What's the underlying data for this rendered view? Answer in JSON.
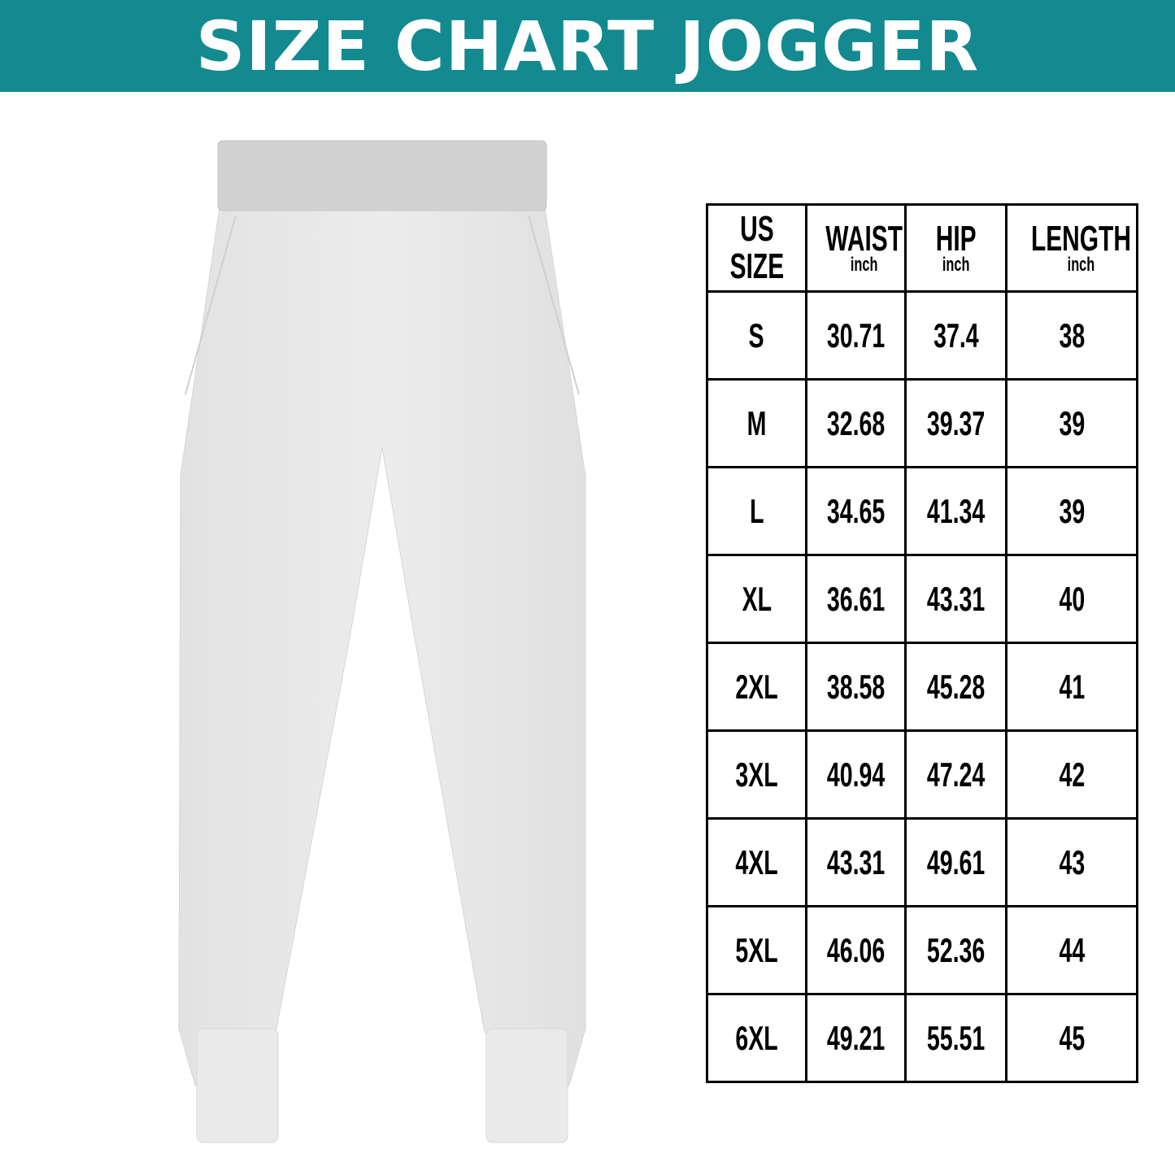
{
  "title": "SIZE CHART JOGGER",
  "colors": {
    "banner": "#138a8f",
    "garment": "#e6e6e6",
    "waistband": "#cfcfcf"
  },
  "image": "white-jogger-pants",
  "table": {
    "headers": [
      {
        "label": "US",
        "label2": "SIZE",
        "unit": ""
      },
      {
        "label": "WAIST",
        "unit": "inch"
      },
      {
        "label": "HIP",
        "unit": "inch"
      },
      {
        "label": "LENGTH",
        "unit": "inch"
      }
    ],
    "rows": [
      [
        "S",
        "30.71",
        "37.4",
        "38"
      ],
      [
        "M",
        "32.68",
        "39.37",
        "39"
      ],
      [
        "L",
        "34.65",
        "41.34",
        "39"
      ],
      [
        "XL",
        "36.61",
        "43.31",
        "40"
      ],
      [
        "2XL",
        "38.58",
        "45.28",
        "41"
      ],
      [
        "3XL",
        "40.94",
        "47.24",
        "42"
      ],
      [
        "4XL",
        "43.31",
        "49.61",
        "43"
      ],
      [
        "5XL",
        "46.06",
        "52.36",
        "44"
      ],
      [
        "6XL",
        "49.21",
        "55.51",
        "45"
      ]
    ]
  }
}
